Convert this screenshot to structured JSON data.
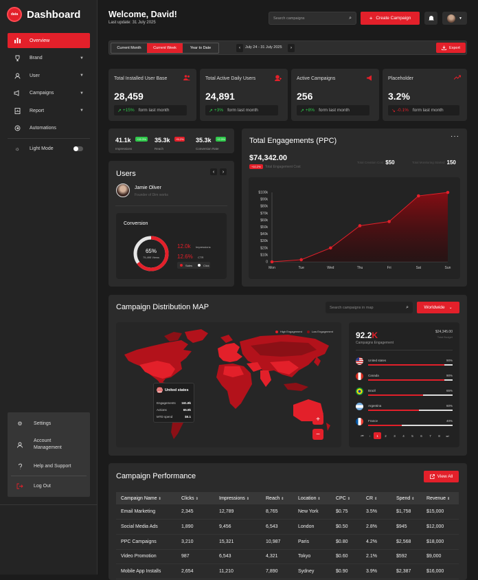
{
  "brand": {
    "name": "Dashboard",
    "mark": "data"
  },
  "nav": {
    "items": [
      {
        "label": "Overview",
        "icon": "bar-chart-icon"
      },
      {
        "label": "Brand",
        "icon": "trophy-icon"
      },
      {
        "label": "User",
        "icon": "user-icon"
      },
      {
        "label": "Campaigns",
        "icon": "megaphone-icon"
      },
      {
        "label": "Report",
        "icon": "report-icon"
      },
      {
        "label": "Automations",
        "icon": "automation-icon"
      }
    ],
    "light_mode": "Light Mode"
  },
  "bottom_menu": {
    "settings": "Settings",
    "account": "Account Management",
    "help": "Help and Support",
    "logout": "Log Out"
  },
  "header": {
    "welcome": "Welcome, David!",
    "last_update": "Last update: 31 July 2025",
    "search_placeholder": "Search campaigns",
    "create_label": "Create Campaign"
  },
  "filters": {
    "tabs": [
      "Current Month",
      "Current Week",
      "Year to Date"
    ],
    "active": "Current Week",
    "range": "July 24 - 31 July 2025",
    "export": "Export"
  },
  "stats": [
    {
      "title": "Total Installed User Base",
      "value": "28,459",
      "change": "+15%",
      "direction": "up",
      "note": "form last month"
    },
    {
      "title": "Total Active Daily Users",
      "value": "24,891",
      "change": "+3%",
      "direction": "up",
      "note": "form last month"
    },
    {
      "title": "Active Campaigns",
      "value": "256",
      "change": "+8%",
      "direction": "up",
      "note": "form last month"
    },
    {
      "title": "Placeholder",
      "value": "3.2%",
      "change": "-0.1%",
      "direction": "down",
      "note": "form last month"
    }
  ],
  "mini_stats": [
    {
      "value": "41.1k",
      "badge": "+15.3%",
      "badge_color": "#2ec84a",
      "label": "Impressions"
    },
    {
      "value": "35.3k",
      "badge": "+5.2%",
      "badge_color": "#e3202a",
      "label": "Reach"
    },
    {
      "value": "35.3k",
      "badge": "+2.3%",
      "badge_color": "#2ec84a",
      "label": "Conversion Rate"
    }
  ],
  "users": {
    "title": "Users",
    "name": "Jamie Oliver",
    "role": "Founder of Dim works"
  },
  "conversion": {
    "title": "Conversion",
    "donut_pct": "65%",
    "donut_sub": "75,495 Views",
    "fill": 0.65,
    "impressions": "12.0k",
    "impressions_label": "Impressions",
    "ctr": "12.6%",
    "ctr_label": "CTR",
    "legend": [
      "Sales",
      "Click"
    ]
  },
  "engagement": {
    "title": "Total Engagements (PPC)",
    "amount": "$74,342.00",
    "badge": "+10.2%",
    "badge_label": "Total Engagement Cost",
    "side1_label": "Total Creation Cost",
    "side1_value": "$50",
    "side2_label": "Total Monitoring Started",
    "side2_value": "150"
  },
  "chart_data": {
    "type": "area",
    "categories": [
      "Mon",
      "Tue",
      "Wed",
      "Thu",
      "Fri",
      "Sat",
      "Sun"
    ],
    "values": [
      0,
      3,
      20,
      52,
      58,
      95,
      100
    ],
    "y_ticks": [
      "0",
      "$10k",
      "$20k",
      "$30k",
      "$40k",
      "$50k",
      "$60k",
      "$70k",
      "$80k",
      "$90k",
      "$100k"
    ],
    "ylim": [
      0,
      100
    ],
    "color": "#e3202a"
  },
  "map": {
    "title": "Campaign Distribution MAP",
    "search_placeholder": "Search campaigns in map",
    "region": "Worldwide",
    "legend_high": "High Engagement",
    "legend_low": "Low Engagement",
    "tooltip": {
      "country": "United states",
      "rows": [
        {
          "label": "Engagements",
          "value": "161.8k"
        },
        {
          "label": "Actions",
          "value": "65.9k"
        },
        {
          "label": "MTD spend",
          "value": "$0.1"
        }
      ]
    },
    "zoom_in": "+",
    "zoom_out": "−"
  },
  "countries": {
    "big": "92.2",
    "big_unit": "K",
    "big_label": "Campaigns Engagement",
    "amount": "$24,345.00",
    "amount_label": "Total Budget",
    "rows": [
      {
        "name": "United states",
        "pct": "90%",
        "fill": 0.9,
        "flag": "us-flag-icon"
      },
      {
        "name": "Canada",
        "pct": "90%",
        "fill": 0.9,
        "flag": "ca-flag-icon"
      },
      {
        "name": "Brazil",
        "pct": "65%",
        "fill": 0.65,
        "flag": "br-flag-icon"
      },
      {
        "name": "Argentina",
        "pct": "60%",
        "fill": 0.6,
        "flag": "ar-flag-icon"
      },
      {
        "name": "France",
        "pct": "40%",
        "fill": 0.4,
        "flag": "fr-flag-icon"
      }
    ],
    "pages": [
      "1",
      "2",
      "3",
      "4",
      "5",
      "6",
      "7",
      "8",
      "9"
    ]
  },
  "performance": {
    "title": "Campaign Performance",
    "view_all": "View All",
    "columns": [
      "Campaign Name",
      "Clicks",
      "Impressions",
      "Reach",
      "Location",
      "CPC",
      "CR",
      "Spend",
      "Revenue"
    ],
    "rows": [
      [
        "Email Marketing",
        "2,345",
        "12,789",
        "8,765",
        "New York",
        "$0.75",
        "3.5%",
        "$1,758",
        "$15,000"
      ],
      [
        "Social Media Ads",
        "1,890",
        "9,456",
        "6,543",
        "London",
        "$0.50",
        "2.8%",
        "$945",
        "$12,000"
      ],
      [
        "PPC Campaigns",
        "3,210",
        "15,321",
        "10,987",
        "Paris",
        "$0.80",
        "4.2%",
        "$2,568",
        "$18,000"
      ],
      [
        "Video Promotion",
        "987",
        "6,543",
        "4,321",
        "Tokyo",
        "$0.60",
        "2.1%",
        "$592",
        "$9,000"
      ],
      [
        "Mobile App Installs",
        "2,654",
        "11,210",
        "7,890",
        "Sydney",
        "$0.90",
        "3.9%",
        "$2,387",
        "$16,000"
      ]
    ]
  }
}
